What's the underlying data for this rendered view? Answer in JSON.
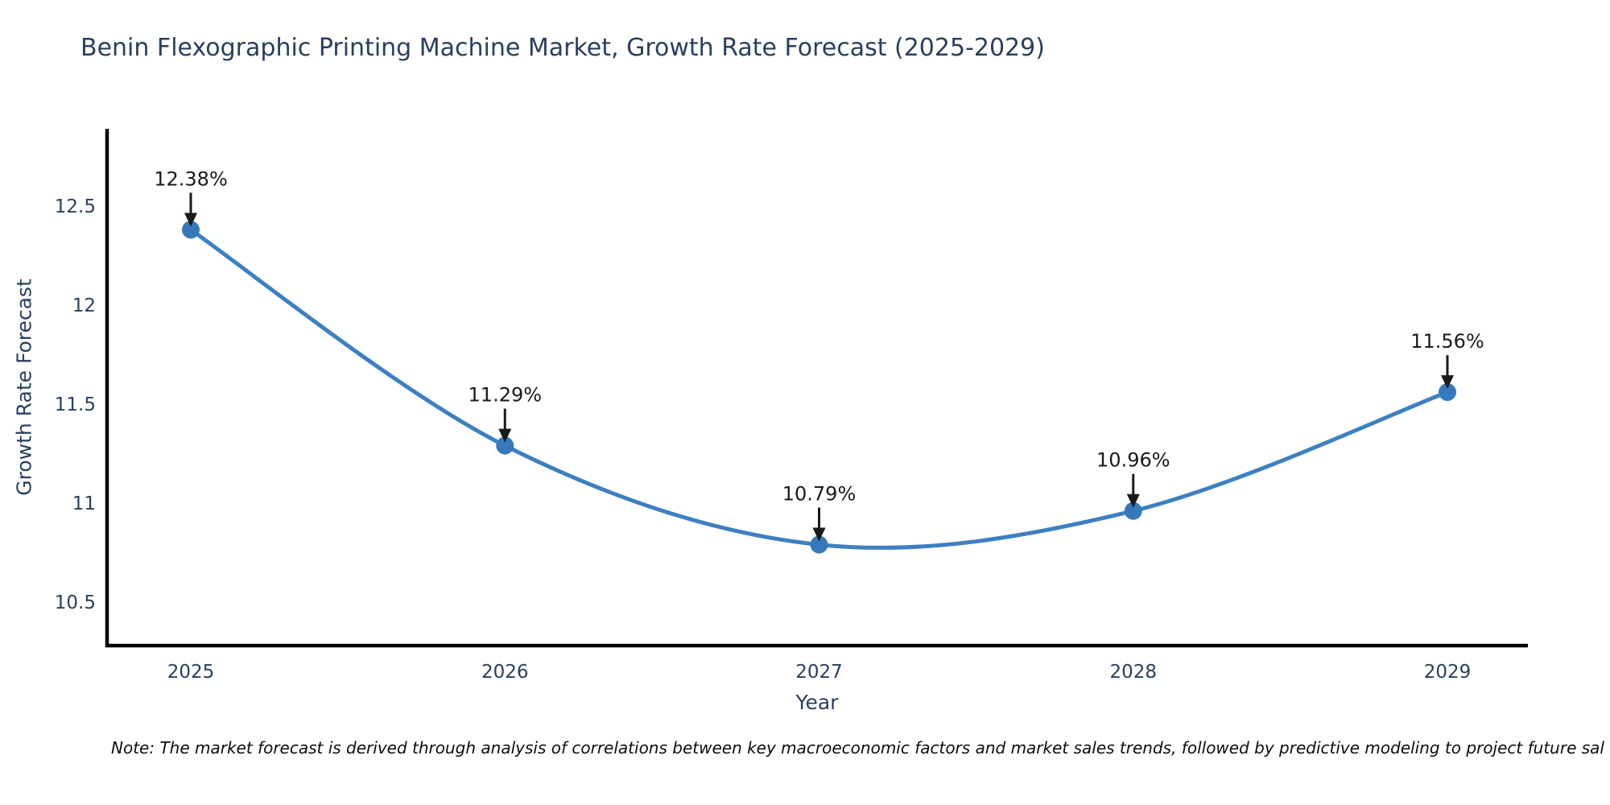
{
  "chart_data": {
    "type": "line",
    "title": "Benin Flexographic Printing Machine Market, Growth Rate Forecast (2025-2029)",
    "xlabel": "Year",
    "ylabel": "Growth Rate Forecast",
    "x": [
      2025,
      2026,
      2027,
      2028,
      2029
    ],
    "y": [
      12.38,
      11.29,
      10.79,
      10.96,
      11.56
    ],
    "point_labels": [
      "12.38%",
      "11.29%",
      "10.79%",
      "10.96%",
      "11.56%"
    ],
    "xtick_labels": [
      "2025",
      "2026",
      "2027",
      "2028",
      "2029"
    ],
    "ytick_values": [
      10.5,
      11,
      11.5,
      12,
      12.5
    ],
    "ytick_labels": [
      "10.5",
      "11",
      "11.5",
      "12",
      "12.5"
    ],
    "ylim": [
      10.28,
      12.89
    ],
    "grid": false,
    "legend": "none",
    "line_shape": "spline",
    "line_color": "#3d80c2",
    "marker_color": "#3679bb",
    "annotation_color": "#1a1a1a",
    "axis_line_color": "#000000",
    "title_color": "#2a3f5f"
  },
  "note": {
    "text": "Note: The market forecast is derived through analysis of correlations between key macroeconomic factors and market sales trends, followed by predictive modeling to project future sal"
  }
}
